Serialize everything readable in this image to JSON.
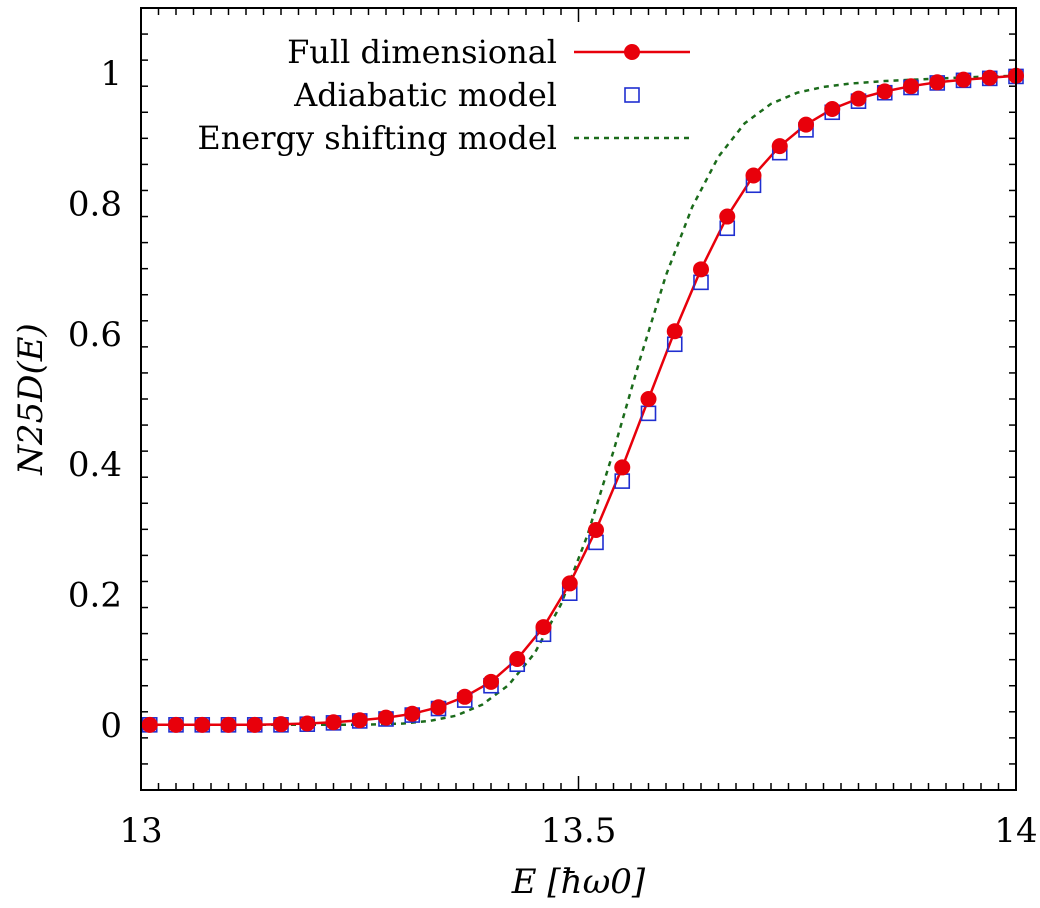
{
  "chart_data": {
    "type": "line",
    "xlabel": "E [ħω0]",
    "ylabel": "N25D(E)",
    "xlim": [
      13.0,
      14.0
    ],
    "ylim": [
      -0.1,
      1.1
    ],
    "xticks": [
      13,
      13.5,
      14
    ],
    "xtick_labels": [
      "13",
      "13.5",
      "14"
    ],
    "yticks": [
      0,
      0.2,
      0.4,
      0.6,
      0.8,
      1
    ],
    "ytick_labels": [
      "0",
      "0.2",
      "0.4",
      "0.6",
      "0.8",
      "1"
    ],
    "legend_position": "top-right",
    "grid": false,
    "series": [
      {
        "name": "Full dimensional",
        "style": "line+filled-circle",
        "color": "#e8000b",
        "x": [
          13.01,
          13.04,
          13.07,
          13.1,
          13.13,
          13.16,
          13.19,
          13.22,
          13.25,
          13.28,
          13.31,
          13.34,
          13.37,
          13.4,
          13.43,
          13.46,
          13.49,
          13.52,
          13.55,
          13.58,
          13.61,
          13.64,
          13.67,
          13.7,
          13.73,
          13.76,
          13.79,
          13.82,
          13.85,
          13.88,
          13.91,
          13.94,
          13.97,
          14.0
        ],
        "y": [
          0.0,
          0.0,
          0.0,
          0.0,
          0.0,
          0.001,
          0.002,
          0.004,
          0.007,
          0.011,
          0.017,
          0.027,
          0.043,
          0.066,
          0.101,
          0.15,
          0.217,
          0.299,
          0.395,
          0.5,
          0.604,
          0.699,
          0.78,
          0.843,
          0.888,
          0.921,
          0.945,
          0.961,
          0.972,
          0.98,
          0.986,
          0.99,
          0.993,
          0.996
        ]
      },
      {
        "name": "Adiabatic model",
        "style": "open-square",
        "color": "#1f2fd0",
        "x": [
          13.01,
          13.04,
          13.07,
          13.1,
          13.13,
          13.16,
          13.19,
          13.22,
          13.25,
          13.28,
          13.31,
          13.34,
          13.37,
          13.4,
          13.43,
          13.46,
          13.49,
          13.52,
          13.55,
          13.58,
          13.61,
          13.64,
          13.67,
          13.7,
          13.73,
          13.76,
          13.79,
          13.82,
          13.85,
          13.88,
          13.91,
          13.94,
          13.97,
          14.0
        ],
        "y": [
          0.0,
          0.0,
          0.0,
          0.0,
          0.0,
          0.0,
          0.001,
          0.003,
          0.006,
          0.009,
          0.015,
          0.025,
          0.038,
          0.06,
          0.093,
          0.139,
          0.202,
          0.28,
          0.374,
          0.478,
          0.584,
          0.679,
          0.762,
          0.828,
          0.878,
          0.913,
          0.94,
          0.957,
          0.97,
          0.978,
          0.985,
          0.989,
          0.992,
          0.995
        ]
      },
      {
        "name": "Energy shifting model",
        "style": "dotted-line",
        "color": "#1b6b1b",
        "x": [
          13.0,
          13.05,
          13.1,
          13.15,
          13.2,
          13.25,
          13.3,
          13.33,
          13.36,
          13.39,
          13.42,
          13.45,
          13.48,
          13.51,
          13.54,
          13.57,
          13.6,
          13.63,
          13.66,
          13.69,
          13.72,
          13.75,
          13.78,
          13.81,
          13.85,
          13.9,
          13.95,
          14.0
        ],
        "y": [
          0.0,
          0.0,
          0.0,
          0.0,
          0.0,
          0.0,
          0.002,
          0.006,
          0.014,
          0.031,
          0.061,
          0.11,
          0.185,
          0.29,
          0.42,
          0.56,
          0.69,
          0.795,
          0.872,
          0.923,
          0.953,
          0.97,
          0.979,
          0.984,
          0.988,
          0.991,
          0.994,
          0.996
        ]
      }
    ]
  }
}
